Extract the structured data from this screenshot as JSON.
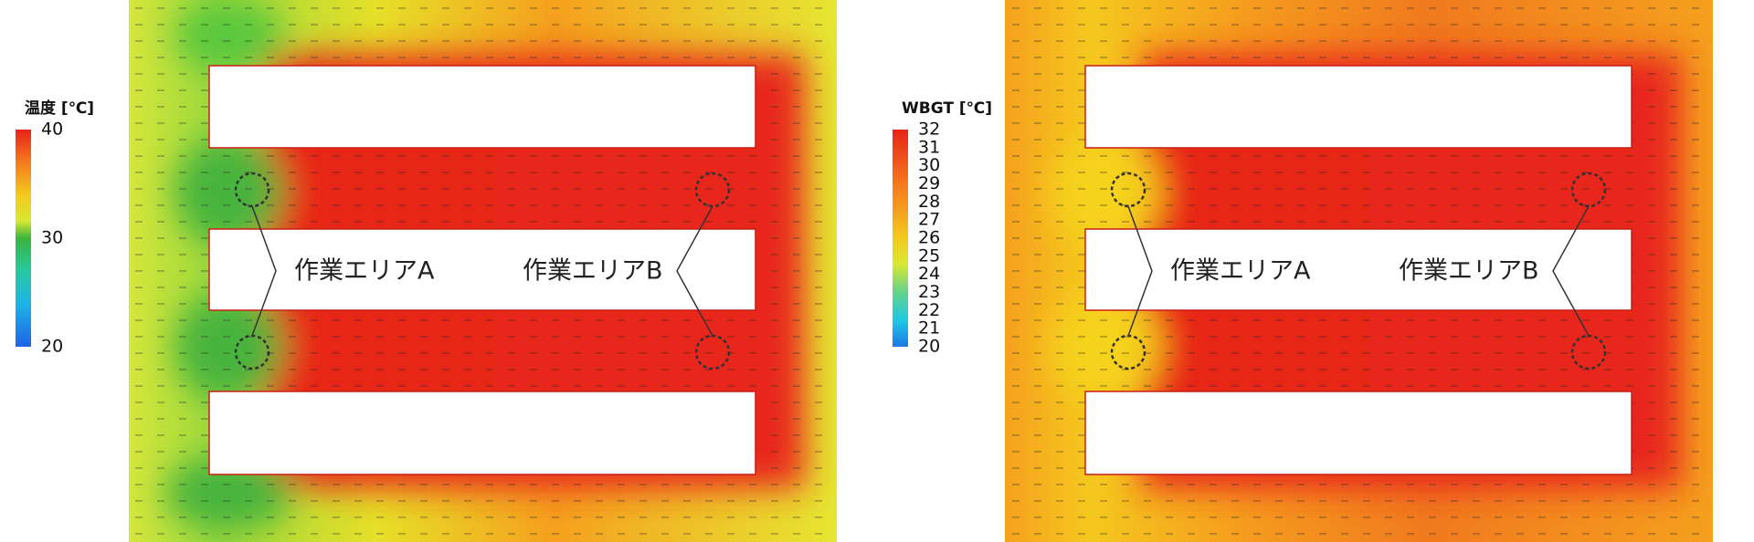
{
  "panels": [
    {
      "legend": {
        "title": "温度 [℃]",
        "ticks": [
          40,
          30,
          20
        ]
      },
      "labels": [
        "作業エリアA",
        "作業エリアB"
      ]
    },
    {
      "legend": {
        "title": "WBGT [℃]",
        "ticks": [
          32,
          31,
          30,
          29,
          28,
          27,
          26,
          25,
          24,
          23,
          22,
          21,
          20
        ]
      },
      "labels": [
        "作業エリアA",
        "作業エリアB"
      ]
    }
  ]
}
